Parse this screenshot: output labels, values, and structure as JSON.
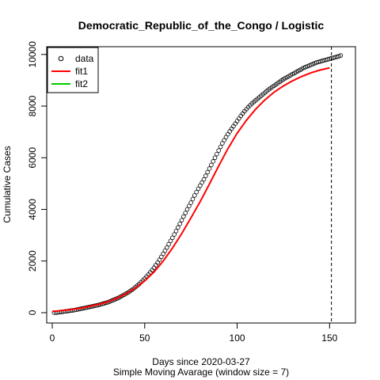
{
  "chart_data": {
    "type": "scatter",
    "title": "Democratic_Republic_of_the_Congo / Logistic",
    "xlabel": "Days since 2020-03-27",
    "xlabel_sub": "Simple Moving Avarage (window size = 7)",
    "ylabel": "Cumulative Cases",
    "xlim": [
      -3,
      164
    ],
    "ylim": [
      -400,
      10300
    ],
    "x_ticks": [
      0,
      50,
      100,
      150
    ],
    "y_ticks": [
      0,
      2000,
      4000,
      6000,
      8000,
      10000
    ],
    "vline_x": 151,
    "legend_position": "top-left",
    "legend": [
      {
        "label": "data",
        "kind": "point",
        "color": "#000000"
      },
      {
        "label": "fit1",
        "kind": "line",
        "color": "#ff0000"
      },
      {
        "label": "fit2",
        "kind": "line",
        "color": "#00cd00"
      }
    ],
    "series": [
      {
        "name": "data",
        "kind": "points",
        "x_start": 1,
        "x_step": 1,
        "values": [
          0,
          0,
          10,
          20,
          30,
          40,
          50,
          60,
          70,
          80,
          90,
          100,
          115,
          130,
          145,
          160,
          175,
          190,
          205,
          220,
          235,
          250,
          265,
          280,
          300,
          320,
          340,
          360,
          380,
          400,
          430,
          460,
          490,
          520,
          550,
          580,
          620,
          660,
          700,
          740,
          780,
          830,
          880,
          930,
          990,
          1050,
          1110,
          1180,
          1250,
          1320,
          1400,
          1480,
          1560,
          1650,
          1740,
          1840,
          1940,
          2050,
          2160,
          2280,
          2400,
          2520,
          2650,
          2780,
          2900,
          3030,
          3160,
          3300,
          3440,
          3580,
          3720,
          3860,
          4000,
          4130,
          4260,
          4400,
          4540,
          4670,
          4800,
          4920,
          5040,
          5160,
          5300,
          5440,
          5580,
          5720,
          5860,
          6000,
          6140,
          6280,
          6420,
          6560,
          6680,
          6800,
          6910,
          7020,
          7120,
          7220,
          7320,
          7420,
          7520,
          7620,
          7710,
          7800,
          7880,
          7960,
          8030,
          8100,
          8160,
          8220,
          8280,
          8340,
          8400,
          8460,
          8520,
          8580,
          8640,
          8690,
          8740,
          8790,
          8840,
          8890,
          8940,
          8990,
          9040,
          9080,
          9120,
          9160,
          9200,
          9240,
          9280,
          9320,
          9360,
          9400,
          9440,
          9480,
          9510,
          9540,
          9570,
          9600,
          9630,
          9660,
          9690,
          9710,
          9730,
          9750,
          9770,
          9790,
          9810,
          9830,
          9850,
          9870,
          9890,
          9910,
          9930,
          9960
        ]
      },
      {
        "name": "fit1",
        "kind": "line",
        "color": "#ff0000",
        "x": [
          0,
          5,
          10,
          15,
          20,
          25,
          30,
          35,
          40,
          45,
          50,
          55,
          60,
          65,
          70,
          75,
          80,
          85,
          90,
          95,
          100,
          105,
          110,
          115,
          120,
          125,
          130,
          135,
          140,
          145,
          150
        ],
        "values": [
          50,
          80,
          120,
          170,
          240,
          320,
          420,
          560,
          740,
          960,
          1230,
          1570,
          2000,
          2500,
          3060,
          3670,
          4300,
          4980,
          5680,
          6350,
          6950,
          7450,
          7880,
          8240,
          8540,
          8780,
          8980,
          9150,
          9290,
          9400,
          9480
        ]
      }
    ]
  }
}
